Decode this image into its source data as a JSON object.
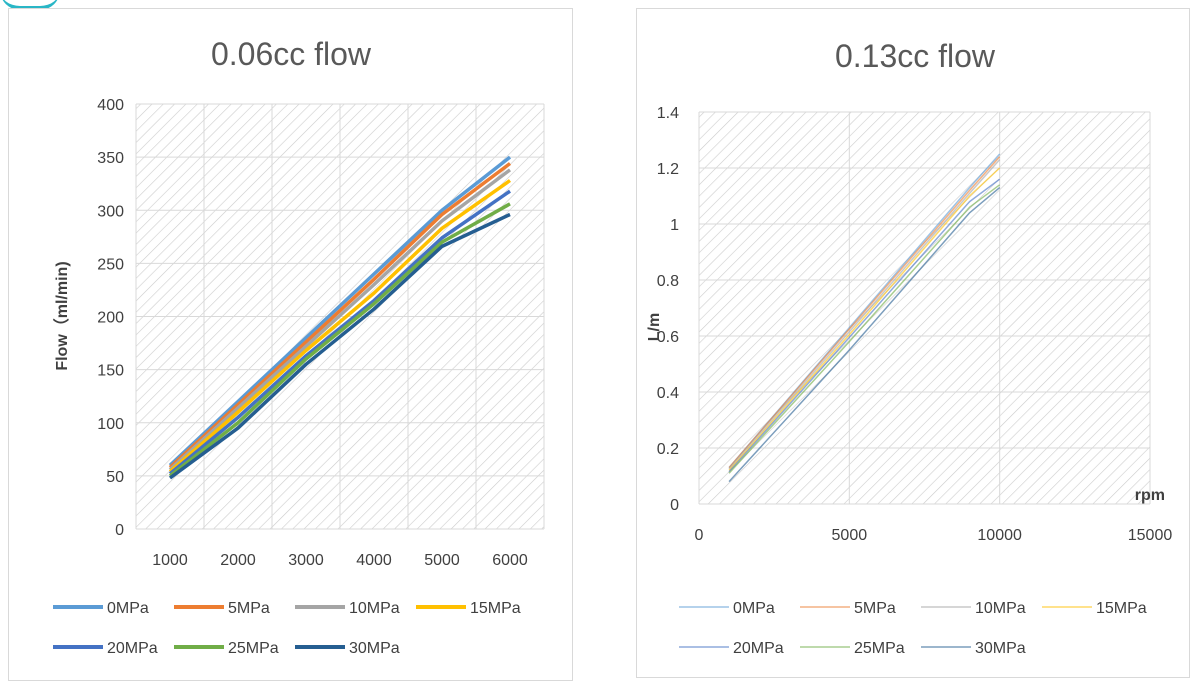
{
  "colors": {
    "hatch": "#c8c8c8",
    "grid": "#d9d9d9",
    "series": [
      "#5b9bd5",
      "#ed7d31",
      "#a5a5a5",
      "#ffc000",
      "#4472c4",
      "#70ad47",
      "#255e91"
    ]
  },
  "chart_data": [
    {
      "type": "line",
      "title": "0.06cc flow",
      "xlabel": "",
      "ylabel": "Flow（ml/min)",
      "categories": [
        "1000",
        "2000",
        "3000",
        "4000",
        "5000",
        "6000"
      ],
      "ylim": [
        0,
        400
      ],
      "yticks": [
        "0",
        "50",
        "100",
        "150",
        "200",
        "250",
        "300",
        "350",
        "400"
      ],
      "grid": true,
      "background": "diagonal-hatch",
      "legend": "bottom",
      "series": [
        {
          "name": "0MPa",
          "values": [
            60,
            120,
            180,
            240,
            300,
            350
          ]
        },
        {
          "name": "5MPa",
          "values": [
            58,
            117,
            176,
            235,
            296,
            344
          ]
        },
        {
          "name": "10MPa",
          "values": [
            56,
            114,
            172,
            230,
            290,
            338
          ]
        },
        {
          "name": "15MPa",
          "values": [
            54,
            110,
            168,
            222,
            283,
            328
          ]
        },
        {
          "name": "20MPa",
          "values": [
            52,
            105,
            163,
            215,
            274,
            318
          ]
        },
        {
          "name": "25MPa",
          "values": [
            50,
            100,
            160,
            212,
            270,
            306
          ]
        },
        {
          "name": "30MPa",
          "values": [
            48,
            95,
            155,
            207,
            266,
            296
          ]
        }
      ]
    },
    {
      "type": "line",
      "title": "0.13cc  flow",
      "xlabel": "rpm",
      "ylabel": "L/m",
      "xlim": [
        0,
        15000
      ],
      "ylim": [
        0,
        1.4
      ],
      "xticks": [
        "0",
        "5000",
        "10000",
        "15000"
      ],
      "yticks": [
        "0",
        "0.2",
        "0.4",
        "0.6",
        "0.8",
        "1",
        "1.2",
        "1.4"
      ],
      "grid": true,
      "background": "diagonal-hatch",
      "legend": "bottom",
      "series": [
        {
          "name": "0MPa",
          "x": [
            1000,
            5000,
            9000,
            10000
          ],
          "y": [
            0.13,
            0.63,
            1.13,
            1.25
          ]
        },
        {
          "name": "5MPa",
          "x": [
            1000,
            5000,
            9000,
            10000
          ],
          "y": [
            0.13,
            0.625,
            1.12,
            1.24
          ]
        },
        {
          "name": "10MPa",
          "x": [
            1000,
            5000,
            9000,
            10000
          ],
          "y": [
            0.125,
            0.615,
            1.11,
            1.23
          ]
        },
        {
          "name": "15MPa",
          "x": [
            1000,
            5000,
            9000,
            10000
          ],
          "y": [
            0.12,
            0.605,
            1.1,
            1.2
          ]
        },
        {
          "name": "20MPa",
          "x": [
            1000,
            5000,
            9000,
            10000
          ],
          "y": [
            0.115,
            0.595,
            1.08,
            1.16
          ]
        },
        {
          "name": "25MPa",
          "x": [
            1000,
            5000,
            9000,
            10000
          ],
          "y": [
            0.11,
            0.58,
            1.06,
            1.14
          ]
        },
        {
          "name": "30MPa",
          "x": [
            1000,
            5000,
            9000,
            10000
          ],
          "y": [
            0.08,
            0.55,
            1.04,
            1.13
          ]
        }
      ]
    }
  ]
}
